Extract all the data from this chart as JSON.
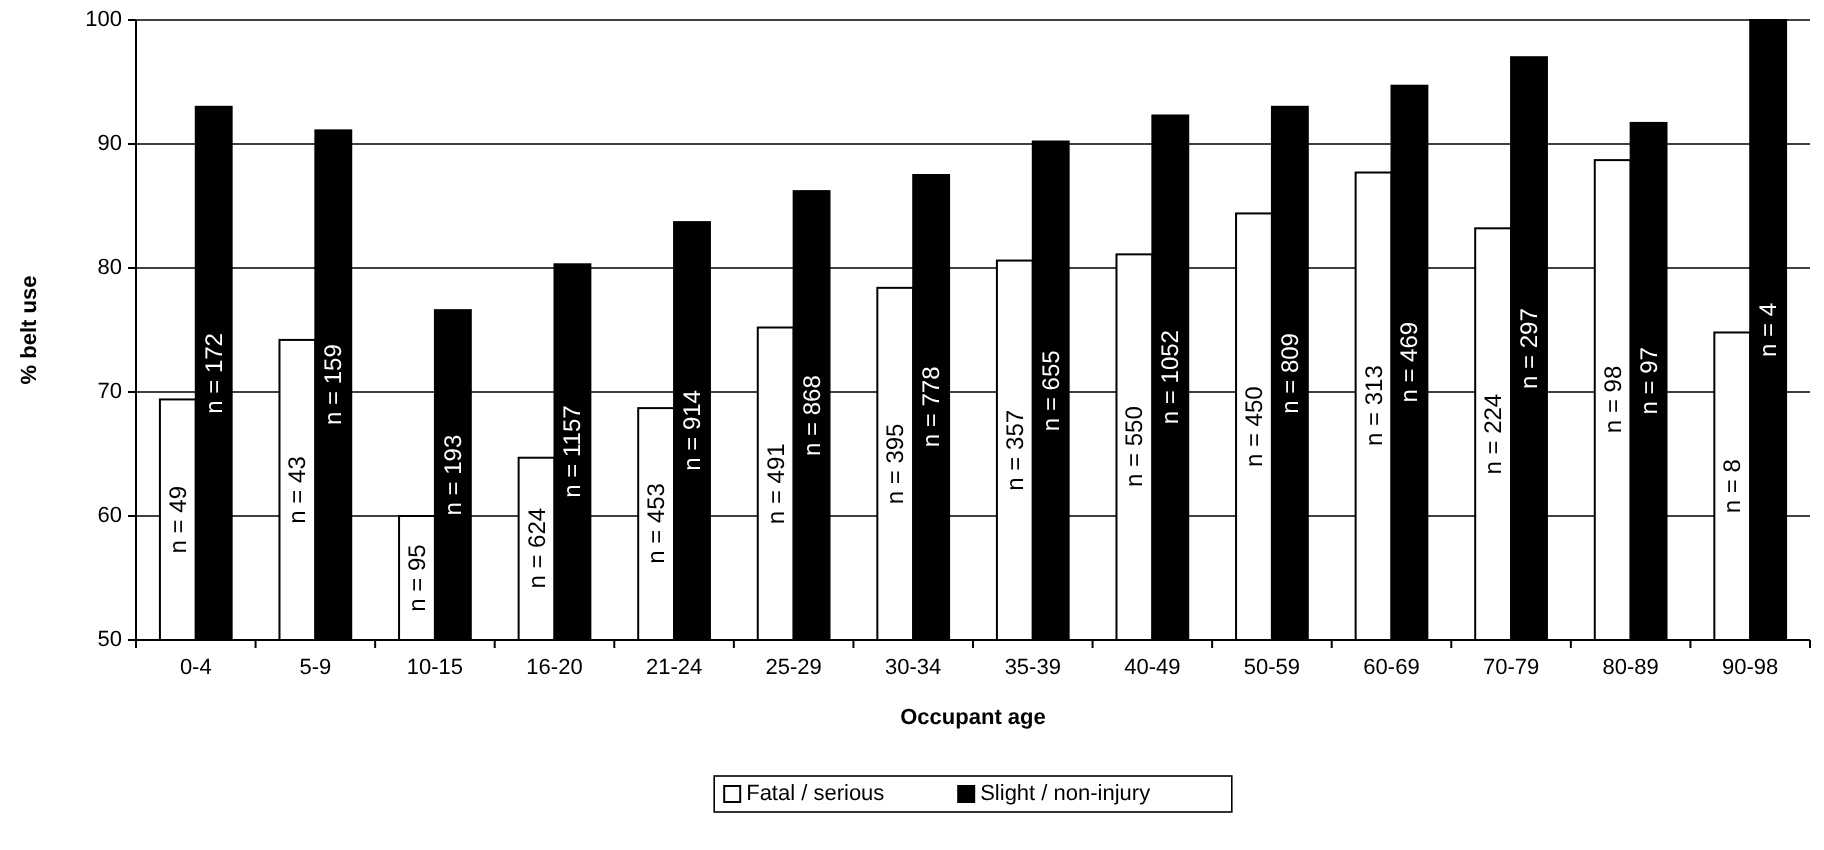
{
  "chart_data": {
    "type": "bar",
    "xlabel": "Occupant age",
    "ylabel": "% belt use",
    "categories": [
      "0-4",
      "5-9",
      "10-15",
      "16-20",
      "21-24",
      "25-29",
      "30-34",
      "35-39",
      "40-49",
      "50-59",
      "60-69",
      "70-79",
      "80-89",
      "90-98"
    ],
    "series": [
      {
        "name": "Fatal / serious",
        "color": "#ffffff",
        "values": [
          69.4,
          74.2,
          60,
          64.7,
          68.7,
          75.2,
          78.4,
          80.6,
          81.1,
          84.4,
          87.7,
          83.2,
          88.7,
          74.8
        ]
      },
      {
        "name": "Slight / non-injury",
        "color": "#000000",
        "values": [
          93,
          91.1,
          76.6,
          80.3,
          83.7,
          86.2,
          87.5,
          90.2,
          92.3,
          93,
          94.7,
          97,
          91.7,
          100
        ]
      }
    ],
    "annotations": [
      {
        "text": "n = 49",
        "x": "0-4",
        "y": 59.7
      },
      {
        "text": "n = 172",
        "x": "0-4",
        "y": 71.5
      },
      {
        "text": "n = 43",
        "x": "5-9",
        "y": 62.1
      },
      {
        "text": "n = 159",
        "x": "5-9",
        "y": 70.6
      },
      {
        "text": "n = 95",
        "x": "10-15",
        "y": 55
      },
      {
        "text": "n = 193",
        "x": "10-15",
        "y": 63.3
      },
      {
        "text": "n = 624",
        "x": "16-20",
        "y": 57.4
      },
      {
        "text": "n = 1157",
        "x": "16-20",
        "y": 65.2
      },
      {
        "text": "n = 453",
        "x": "21-24",
        "y": 59.4
      },
      {
        "text": "n = 914",
        "x": "21-24",
        "y": 66.9
      },
      {
        "text": "n = 491",
        "x": "25-29",
        "y": 62.6
      },
      {
        "text": "n = 868",
        "x": "25-29",
        "y": 68.1
      },
      {
        "text": "n = 395",
        "x": "30-34",
        "y": 64.2
      },
      {
        "text": "n = 778",
        "x": "30-34",
        "y": 68.8
      },
      {
        "text": "n = 357",
        "x": "35-39",
        "y": 65.3
      },
      {
        "text": "n = 655",
        "x": "35-39",
        "y": 70.1
      },
      {
        "text": "n = 550",
        "x": "40-49",
        "y": 65.6
      },
      {
        "text": "n = 1052",
        "x": "40-49",
        "y": 71.2
      },
      {
        "text": "n = 450",
        "x": "50-59",
        "y": 67.2
      },
      {
        "text": "n = 809",
        "x": "50-59",
        "y": 71.5
      },
      {
        "text": "n = 313",
        "x": "60-69",
        "y": 68.9
      },
      {
        "text": "n = 469",
        "x": "60-69",
        "y": 72.4
      },
      {
        "text": "n = 224",
        "x": "70-79",
        "y": 66.6
      },
      {
        "text": "n = 297",
        "x": "70-79",
        "y": 73.5
      },
      {
        "text": "n = 98",
        "x": "80-89",
        "y": 69.4
      },
      {
        "text": "n = 97",
        "x": "80-89",
        "y": 70.9
      },
      {
        "text": "n = 8",
        "x": "90-98",
        "y": 62.4
      },
      {
        "text": "n = 4",
        "x": "90-98",
        "y": 75
      }
    ],
    "ylim": [
      50,
      100
    ],
    "yticks": [
      50,
      60,
      70,
      80,
      90,
      100
    ],
    "grid": "y",
    "legend": "bottom"
  }
}
